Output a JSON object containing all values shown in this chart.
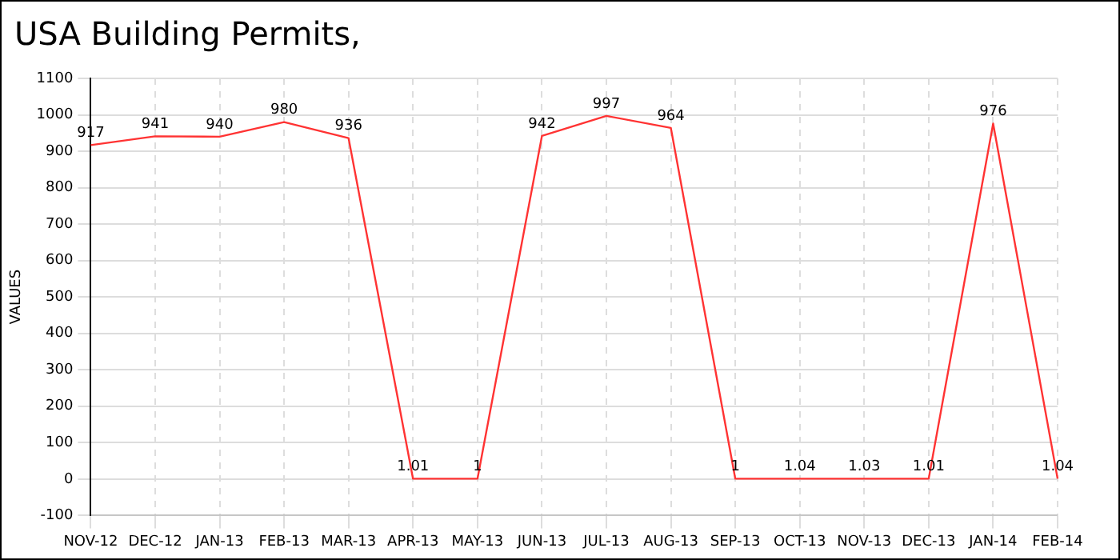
{
  "chart_data": {
    "type": "line",
    "title": "USA Building Permits,",
    "ylabel": "VALUES",
    "categories": [
      "NOV-12",
      "DEC-12",
      "JAN-13",
      "FEB-13",
      "MAR-13",
      "APR-13",
      "MAY-13",
      "JUN-13",
      "JUL-13",
      "AUG-13",
      "SEP-13",
      "OCT-13",
      "NOV-13",
      "DEC-13",
      "JAN-14",
      "FEB-14"
    ],
    "series": [
      {
        "color": "#ff3333",
        "values": [
          917,
          941,
          940,
          980,
          936,
          1.01,
          1,
          942,
          997,
          964,
          1,
          1.04,
          1.03,
          1.01,
          976,
          1.04
        ]
      }
    ],
    "ylim": [
      -100,
      1100
    ],
    "yticks": [
      -100,
      0,
      100,
      200,
      300,
      400,
      500,
      600,
      700,
      800,
      900,
      1000,
      1100
    ],
    "grid": true,
    "legend": false,
    "marker": "none",
    "line_style": "solid",
    "data_labels": true
  }
}
